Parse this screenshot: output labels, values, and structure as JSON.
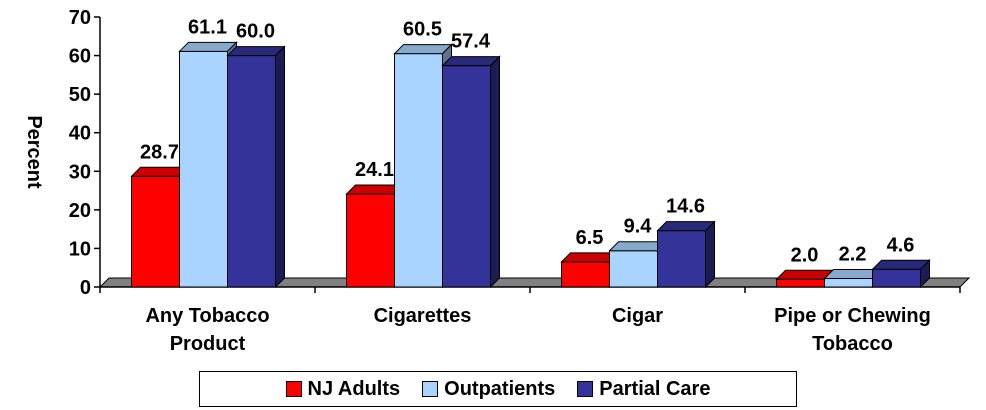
{
  "chart_data": {
    "type": "bar",
    "title": "",
    "xlabel": "",
    "ylabel": "Percent",
    "ylim": [
      0,
      70
    ],
    "yticks": [
      0,
      10,
      20,
      30,
      40,
      50,
      60,
      70
    ],
    "categories": [
      [
        "Any Tobacco",
        "Product"
      ],
      [
        "Cigarettes"
      ],
      [
        "Cigar"
      ],
      [
        "Pipe or Chewing",
        "Tobacco"
      ]
    ],
    "series": [
      {
        "name": "NJ Adults",
        "color": "#ff0000",
        "values": [
          28.7,
          24.1,
          6.5,
          2.0
        ]
      },
      {
        "name": "Outpatients",
        "color": "#a9d4ff",
        "values": [
          61.1,
          60.5,
          9.4,
          2.2
        ]
      },
      {
        "name": "Partial Care",
        "color": "#333399",
        "values": [
          60.0,
          57.4,
          14.6,
          4.6
        ]
      }
    ],
    "data_labels": true,
    "legend_position": "bottom",
    "grid": false,
    "three_d": true
  }
}
